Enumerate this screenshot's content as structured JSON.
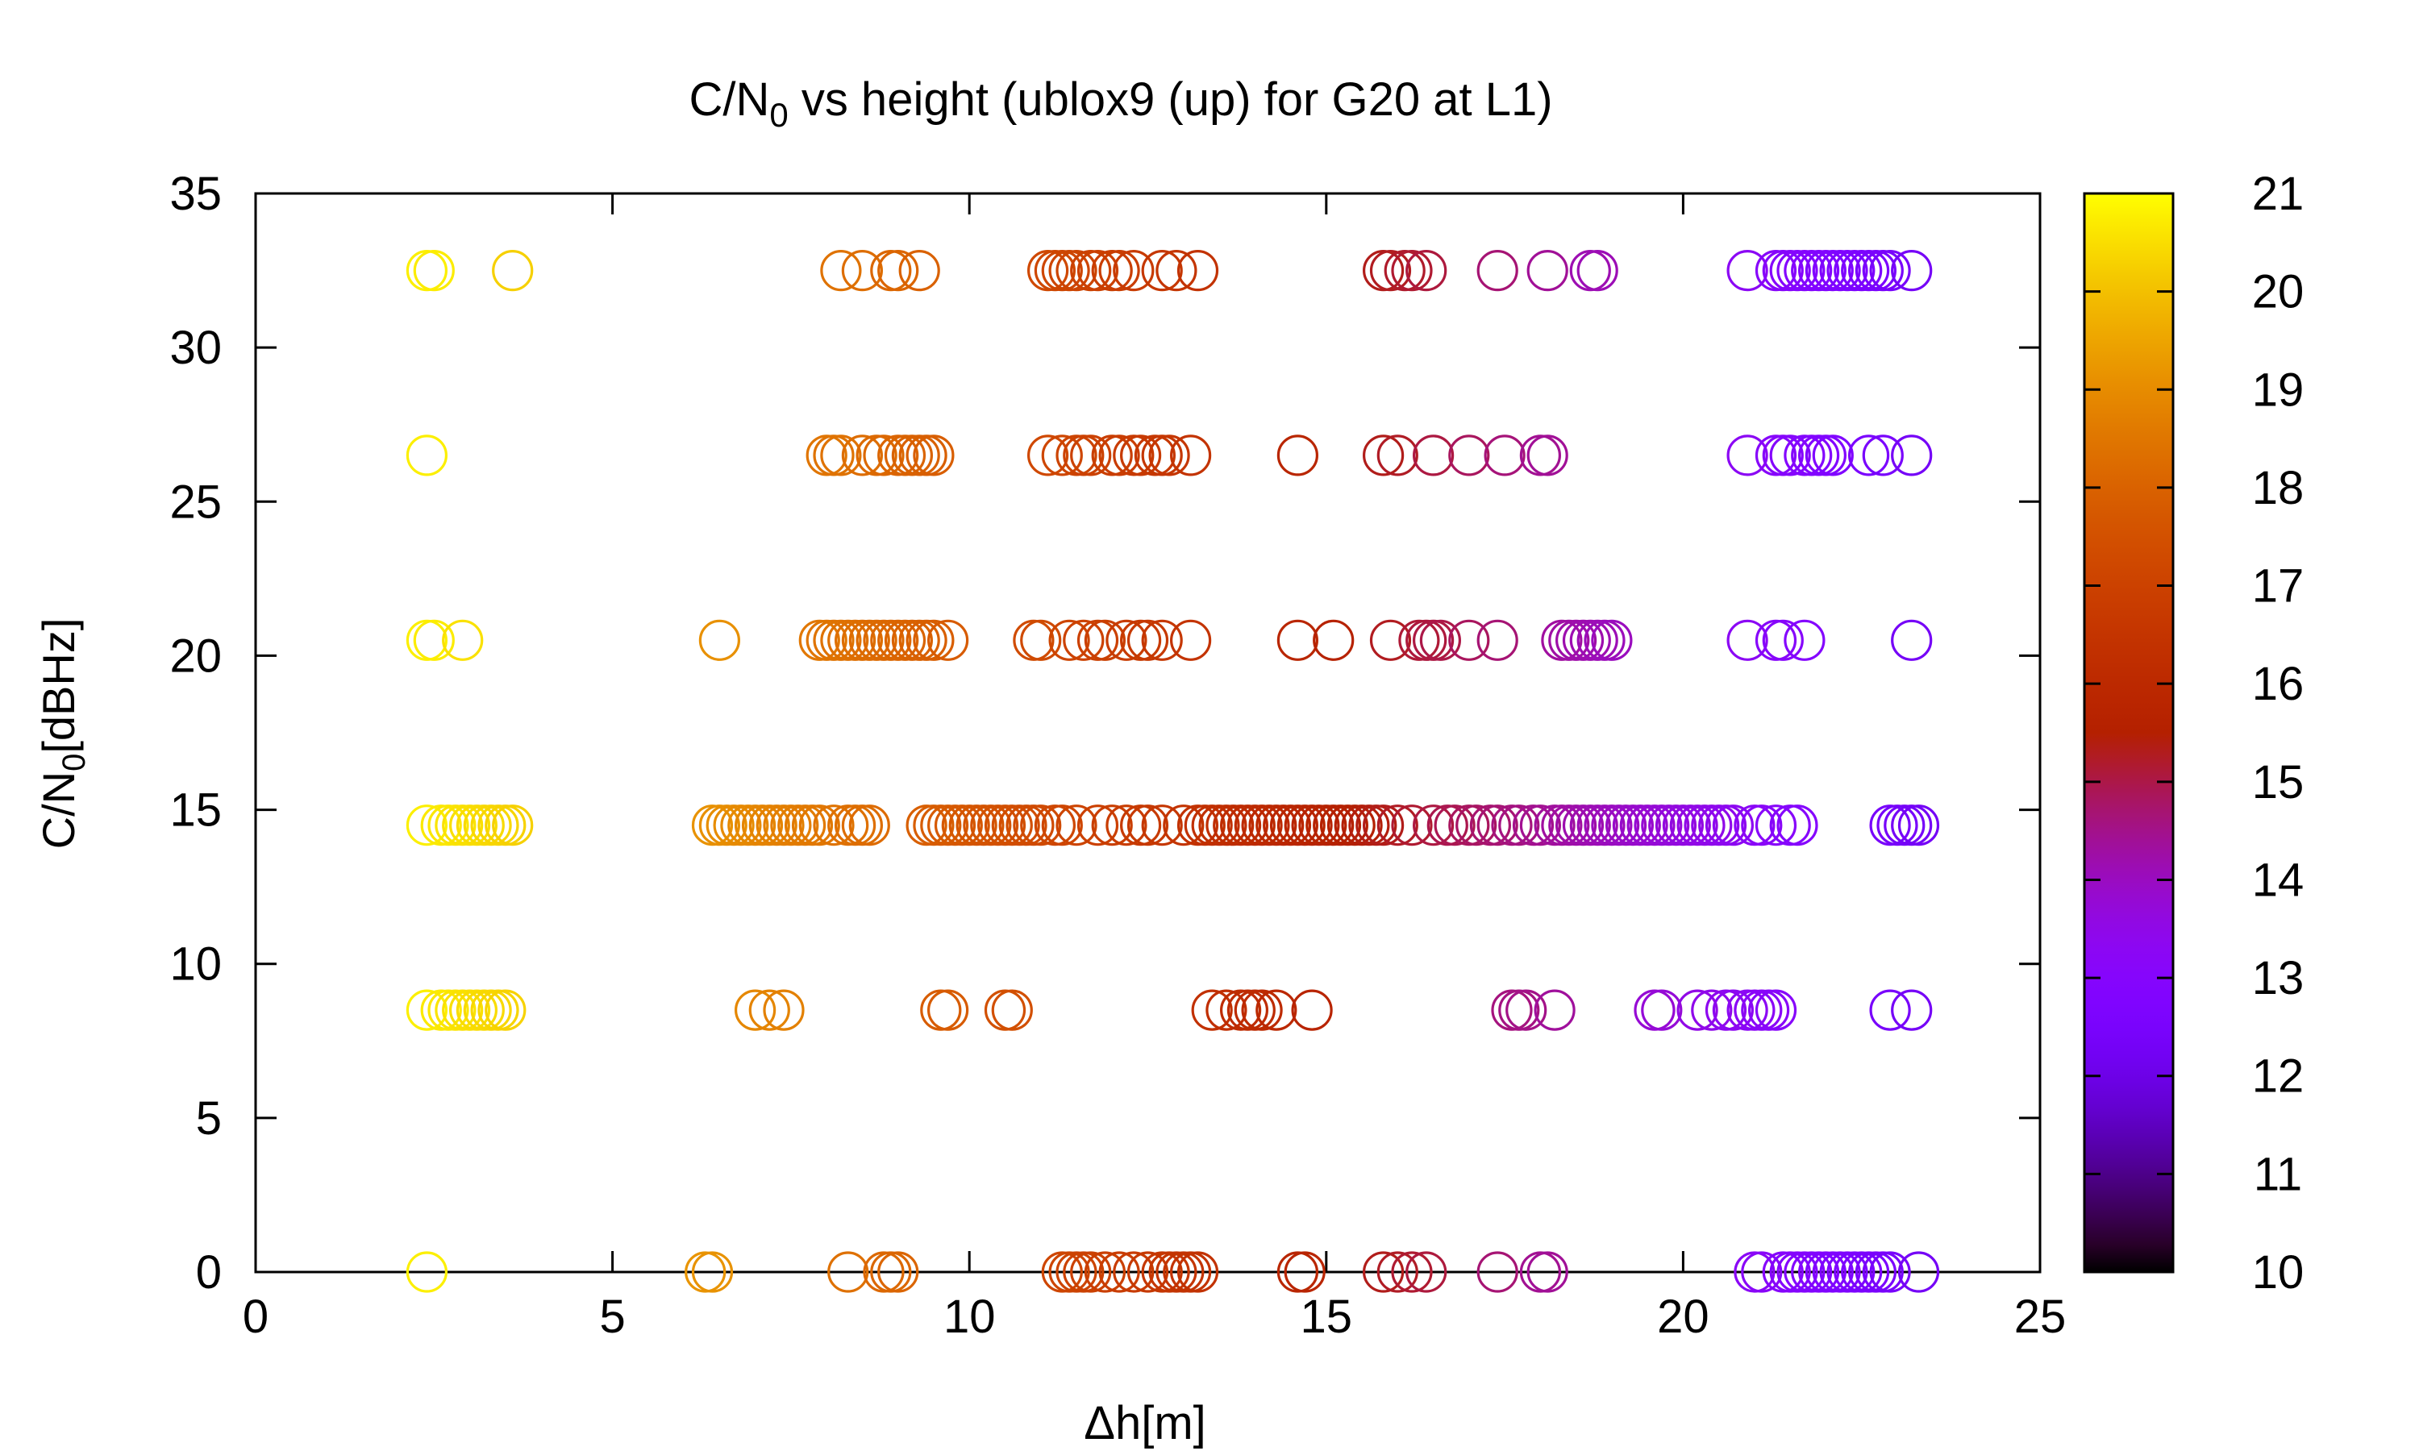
{
  "chart_data": {
    "type": "scatter",
    "title_main": "C/N",
    "title_sub": "0",
    "title_rest": " vs height (ublox9 (up) for G20 at L1)",
    "xlabel": "Δh[m]",
    "ylabel_main": "C/N",
    "ylabel_sub": "0",
    "ylabel_rest": "[dBHz]",
    "xlim": [
      0,
      25
    ],
    "ylim": [
      0,
      35
    ],
    "xticks": [
      "0",
      "5",
      "10",
      "15",
      "20",
      "25"
    ],
    "yticks": [
      "0",
      "5",
      "10",
      "15",
      "20",
      "25",
      "30",
      "35"
    ],
    "colorbar": {
      "min": 10,
      "max": 21,
      "ticks": [
        "10",
        "11",
        "12",
        "13",
        "14",
        "15",
        "16",
        "17",
        "18",
        "19",
        "20",
        "21"
      ],
      "palette": "gnuplot-pm3d-default"
    },
    "marker": "open-circle",
    "grid": false,
    "series": [
      {
        "c_n0": 32.5,
        "x": [
          2.4,
          2.5,
          3.6,
          8.2,
          8.5,
          8.9,
          9.0,
          9.3,
          11.1,
          11.2,
          11.3,
          11.4,
          11.5,
          11.7,
          11.8,
          12.0,
          12.1,
          12.3,
          12.7,
          12.9,
          13.2,
          15.8,
          15.9,
          16.1,
          16.2,
          16.4,
          17.4,
          18.1,
          18.7,
          18.8,
          20.9,
          21.3,
          21.4,
          21.5,
          21.6,
          21.7,
          21.8,
          21.9,
          22.0,
          22.1,
          22.2,
          22.3,
          22.4,
          22.5,
          22.6,
          22.7,
          22.8,
          22.9,
          23.2
        ]
      },
      {
        "c_n0": 26.5,
        "x": [
          2.4,
          8.0,
          8.1,
          8.2,
          8.5,
          8.7,
          8.8,
          9.0,
          9.1,
          9.2,
          9.3,
          9.4,
          9.5,
          11.1,
          11.3,
          11.5,
          11.6,
          11.7,
          12.0,
          12.1,
          12.3,
          12.4,
          12.6,
          12.7,
          12.8,
          13.1,
          14.6,
          15.8,
          16.0,
          16.5,
          17.0,
          17.5,
          18.0,
          18.1,
          20.9,
          21.3,
          21.4,
          21.5,
          21.7,
          21.8,
          21.9,
          22.0,
          22.1,
          22.6,
          22.8,
          23.2
        ]
      },
      {
        "c_n0": 20.5,
        "x": [
          2.4,
          2.5,
          2.9,
          6.5,
          7.9,
          8.0,
          8.1,
          8.2,
          8.3,
          8.4,
          8.5,
          8.6,
          8.7,
          8.8,
          8.9,
          9.0,
          9.1,
          9.2,
          9.3,
          9.4,
          9.5,
          9.7,
          10.9,
          11.0,
          11.4,
          11.6,
          11.8,
          11.9,
          12.2,
          12.4,
          12.5,
          12.7,
          13.1,
          14.6,
          15.1,
          15.9,
          16.3,
          16.4,
          16.5,
          16.6,
          17.0,
          17.4,
          18.3,
          18.4,
          18.5,
          18.6,
          18.7,
          18.8,
          18.9,
          19.0,
          20.9,
          21.3,
          21.4,
          21.7,
          23.2
        ]
      },
      {
        "c_n0": 14.5,
        "x": [
          2.4,
          2.6,
          2.7,
          2.8,
          2.9,
          3.0,
          3.1,
          3.2,
          3.3,
          3.4,
          3.5,
          3.6,
          6.4,
          6.5,
          6.6,
          6.7,
          6.8,
          6.9,
          7.0,
          7.1,
          7.2,
          7.3,
          7.4,
          7.5,
          7.6,
          7.7,
          7.8,
          7.9,
          8.1,
          8.3,
          8.4,
          8.5,
          8.6,
          9.4,
          9.5,
          9.6,
          9.7,
          9.8,
          9.9,
          10.0,
          10.1,
          10.2,
          10.3,
          10.4,
          10.5,
          10.6,
          10.7,
          10.8,
          10.9,
          11.0,
          11.2,
          11.3,
          11.5,
          11.8,
          12.0,
          12.2,
          12.4,
          12.5,
          12.7,
          13.0,
          13.2,
          13.3,
          13.4,
          13.5,
          13.6,
          13.7,
          13.8,
          13.9,
          14.0,
          14.1,
          14.2,
          14.3,
          14.4,
          14.5,
          14.6,
          14.7,
          14.8,
          14.9,
          15.0,
          15.1,
          15.2,
          15.3,
          15.4,
          15.5,
          15.6,
          15.7,
          15.8,
          16.0,
          16.2,
          16.5,
          16.7,
          16.8,
          17.0,
          17.1,
          17.3,
          17.4,
          17.6,
          17.7,
          17.9,
          18.0,
          18.2,
          18.3,
          18.4,
          18.5,
          18.6,
          18.7,
          18.8,
          18.9,
          19.0,
          19.1,
          19.2,
          19.3,
          19.4,
          19.5,
          19.6,
          19.7,
          19.8,
          19.9,
          20.0,
          20.1,
          20.2,
          20.3,
          20.4,
          20.5,
          20.6,
          20.7,
          21.0,
          21.1,
          21.3,
          21.5,
          21.6,
          22.9,
          23.0,
          23.1,
          23.2,
          23.3
        ]
      },
      {
        "c_n0": 8.5,
        "x": [
          2.4,
          2.6,
          2.7,
          2.8,
          2.9,
          3.0,
          3.1,
          3.2,
          3.3,
          3.4,
          3.5,
          7.0,
          7.2,
          7.4,
          9.6,
          9.7,
          10.5,
          10.6,
          13.4,
          13.6,
          13.8,
          13.9,
          14.0,
          14.1,
          14.3,
          14.8,
          17.6,
          17.7,
          17.8,
          18.2,
          19.6,
          19.7,
          20.2,
          20.4,
          20.6,
          20.7,
          20.9,
          21.0,
          21.1,
          21.2,
          21.3,
          22.9,
          23.2
        ]
      },
      {
        "c_n0": 0,
        "x": [
          2.4,
          6.3,
          6.4,
          8.3,
          8.8,
          8.9,
          9.0,
          11.3,
          11.4,
          11.5,
          11.6,
          11.7,
          11.9,
          12.1,
          12.3,
          12.5,
          12.7,
          12.8,
          12.9,
          13.0,
          13.1,
          13.2,
          14.6,
          14.7,
          15.8,
          16.0,
          16.2,
          16.4,
          17.4,
          18.0,
          18.1,
          21.0,
          21.1,
          21.4,
          21.5,
          21.6,
          21.7,
          21.8,
          21.9,
          22.0,
          22.1,
          22.2,
          22.3,
          22.4,
          22.5,
          22.6,
          22.7,
          22.8,
          22.9,
          23.3
        ]
      }
    ]
  }
}
